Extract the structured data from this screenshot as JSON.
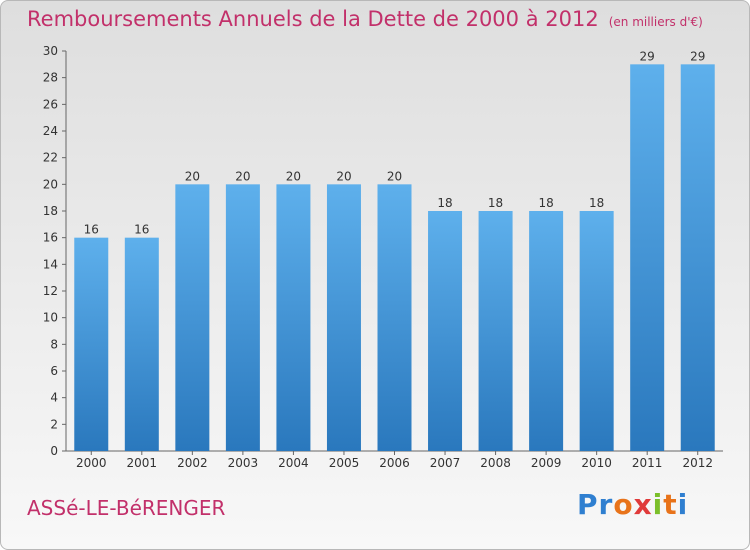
{
  "chart_data": {
    "type": "bar",
    "title": "Remboursements Annuels de la Dette de 2000 à 2012",
    "subtitle": "(en milliers d'€)",
    "categories": [
      "2000",
      "2001",
      "2002",
      "2003",
      "2004",
      "2005",
      "2006",
      "2007",
      "2008",
      "2009",
      "2010",
      "2011",
      "2012"
    ],
    "values": [
      16,
      16,
      20,
      20,
      20,
      20,
      20,
      18,
      18,
      18,
      18,
      29,
      29
    ],
    "xlabel": "",
    "ylabel": "",
    "ylim": [
      0,
      30
    ],
    "yticks": [
      0,
      2,
      4,
      6,
      8,
      10,
      12,
      14,
      16,
      18,
      20,
      22,
      24,
      26,
      28,
      30
    ],
    "grid": false,
    "bar_color": "#3d8fd6"
  },
  "footer": {
    "city": "ASSé-LE-BéRENGER",
    "brand_letters": [
      "P",
      "r",
      "o",
      "x",
      "i",
      "t",
      "i"
    ],
    "brand_colors": [
      "#2f7fd0",
      "#2f7fd0",
      "#e8731a",
      "#e03a3a",
      "#7bbf2a",
      "#e8731a",
      "#2f7fd0"
    ]
  }
}
